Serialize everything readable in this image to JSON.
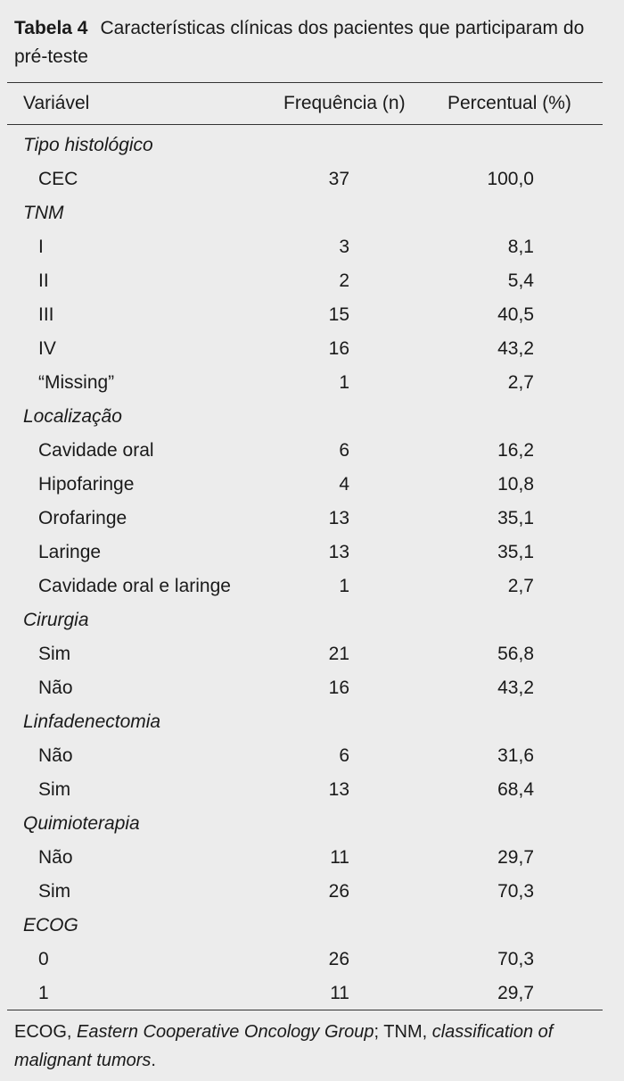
{
  "caption": {
    "label": "Tabela 4",
    "text": "Características clínicas dos pacientes que participaram do pré-teste"
  },
  "table": {
    "header": [
      "Variável",
      "Frequência (n)",
      "Percentual (%)"
    ],
    "groups": [
      {
        "name": "Tipo histológico",
        "rows": [
          [
            "CEC",
            "37",
            "100,0"
          ]
        ]
      },
      {
        "name": "TNM",
        "rows": [
          [
            "I",
            "3",
            "8,1"
          ],
          [
            "II",
            "2",
            "5,4"
          ],
          [
            "III",
            "15",
            "40,5"
          ],
          [
            "IV",
            "16",
            "43,2"
          ],
          [
            "“Missing”",
            "1",
            "2,7"
          ]
        ]
      },
      {
        "name": "Localização",
        "rows": [
          [
            "Cavidade oral",
            "6",
            "16,2"
          ],
          [
            "Hipofaringe",
            "4",
            "10,8"
          ],
          [
            "Orofaringe",
            "13",
            "35,1"
          ],
          [
            "Laringe",
            "13",
            "35,1"
          ],
          [
            "Cavidade oral e laringe",
            "1",
            "2,7"
          ]
        ]
      },
      {
        "name": "Cirurgia",
        "rows": [
          [
            "Sim",
            "21",
            "56,8"
          ],
          [
            "Não",
            "16",
            "43,2"
          ]
        ]
      },
      {
        "name": "Linfadenectomia",
        "rows": [
          [
            "Não",
            "6",
            "31,6"
          ],
          [
            "Sim",
            "13",
            "68,4"
          ]
        ]
      },
      {
        "name": "Quimioterapia",
        "rows": [
          [
            "Não",
            "11",
            "29,7"
          ],
          [
            "Sim",
            "26",
            "70,3"
          ]
        ]
      },
      {
        "name": "ECOG",
        "rows": [
          [
            "0",
            "26",
            "70,3"
          ],
          [
            "1",
            "11",
            "29,7"
          ]
        ]
      }
    ]
  },
  "footnote": {
    "segments": [
      {
        "text": "ECOG, "
      },
      {
        "text": "Eastern Cooperative Oncology Group",
        "italic": true
      },
      {
        "text": "; TNM, "
      },
      {
        "text": "classification of malignant tumors",
        "italic": true
      },
      {
        "text": "."
      }
    ]
  }
}
